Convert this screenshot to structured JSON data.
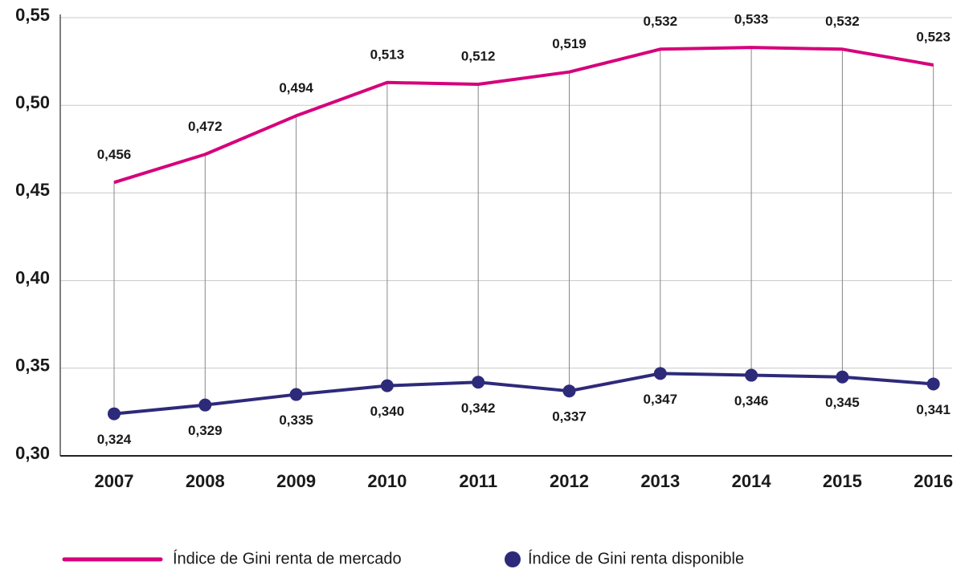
{
  "chart_data": {
    "type": "line",
    "categories": [
      "2007",
      "2008",
      "2009",
      "2010",
      "2011",
      "2012",
      "2013",
      "2014",
      "2015",
      "2016"
    ],
    "series": [
      {
        "name": "Índice de Gini renta de mercado",
        "color": "#d6007a",
        "values": [
          0.456,
          0.472,
          0.494,
          0.513,
          0.512,
          0.519,
          0.532,
          0.533,
          0.532,
          0.523
        ],
        "value_labels": [
          "0,456",
          "0,472",
          "0,494",
          "0,513",
          "0,512",
          "0,519",
          "0,532",
          "0,533",
          "0,532",
          "0,523"
        ]
      },
      {
        "name": "Índice de Gini renta disponible",
        "color": "#2e2a7a",
        "values": [
          0.324,
          0.329,
          0.335,
          0.34,
          0.342,
          0.337,
          0.347,
          0.346,
          0.345,
          0.341
        ],
        "value_labels": [
          "0,324",
          "0,329",
          "0,335",
          "0,340",
          "0,342",
          "0,337",
          "0,347",
          "0,346",
          "0,345",
          "0,341"
        ]
      }
    ],
    "ylim": [
      0.3,
      0.55
    ],
    "yticks": [
      {
        "value": 0.3,
        "label": "0,30"
      },
      {
        "value": 0.35,
        "label": "0,35"
      },
      {
        "value": 0.4,
        "label": "0,40"
      },
      {
        "value": 0.45,
        "label": "0,45"
      },
      {
        "value": 0.5,
        "label": "0,50"
      },
      {
        "value": 0.55,
        "label": "0,55"
      }
    ],
    "grid": true
  }
}
